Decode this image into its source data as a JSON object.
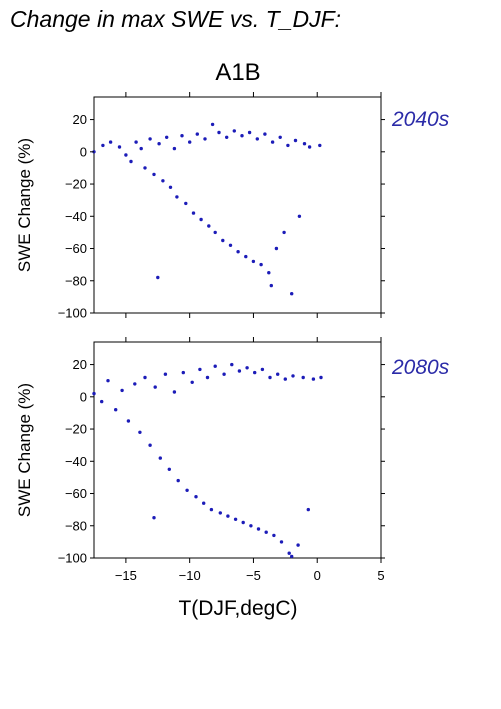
{
  "suptitle": "Change in max SWE vs. T_DJF:",
  "chart_title": "A1B",
  "xlabel": "T(DJF,degC)",
  "ylabel": "SWE Change (%)",
  "colors": {
    "points": "#1c1cb8",
    "panel_label": "#2b2ba8"
  },
  "chart_data": [
    {
      "type": "scatter",
      "panel_label": "2040s",
      "title": "A1B",
      "xlabel": "T(DJF,degC)",
      "ylabel": "SWE Change (%)",
      "xlim": [
        -17.5,
        5
      ],
      "ylim": [
        -100,
        34
      ],
      "xticks": [
        -15,
        -10,
        -5,
        0,
        5
      ],
      "yticks": [
        20,
        0,
        -20,
        -40,
        -60,
        -80,
        -100
      ],
      "xtick_labels_shown": false,
      "series": [
        {
          "points": [
            [
              -17.5,
              0
            ],
            [
              -16.8,
              4
            ],
            [
              -16.2,
              6
            ],
            [
              -15.5,
              3
            ],
            [
              -15.0,
              -2
            ],
            [
              -14.6,
              -6
            ],
            [
              -14.2,
              6
            ],
            [
              -13.8,
              2
            ],
            [
              -13.5,
              -10
            ],
            [
              -13.1,
              8
            ],
            [
              -12.8,
              -14
            ],
            [
              -12.4,
              5
            ],
            [
              -12.1,
              -18
            ],
            [
              -11.8,
              9
            ],
            [
              -11.5,
              -22
            ],
            [
              -11.2,
              2
            ],
            [
              -11.0,
              -28
            ],
            [
              -10.6,
              10
            ],
            [
              -10.3,
              -32
            ],
            [
              -10.0,
              6
            ],
            [
              -9.7,
              -38
            ],
            [
              -9.4,
              11
            ],
            [
              -9.1,
              -42
            ],
            [
              -8.8,
              8
            ],
            [
              -8.5,
              -46
            ],
            [
              -8.2,
              17
            ],
            [
              -8.0,
              -50
            ],
            [
              -7.7,
              12
            ],
            [
              -7.4,
              -55
            ],
            [
              -7.1,
              9
            ],
            [
              -6.8,
              -58
            ],
            [
              -6.5,
              13
            ],
            [
              -6.2,
              -62
            ],
            [
              -5.9,
              10
            ],
            [
              -5.6,
              -65
            ],
            [
              -5.3,
              12
            ],
            [
              -5.0,
              -68
            ],
            [
              -4.7,
              8
            ],
            [
              -4.4,
              -70
            ],
            [
              -4.1,
              11
            ],
            [
              -3.8,
              -75
            ],
            [
              -3.5,
              6
            ],
            [
              -3.2,
              -60
            ],
            [
              -2.9,
              9
            ],
            [
              -2.6,
              -50
            ],
            [
              -2.3,
              4
            ],
            [
              -2.0,
              -88
            ],
            [
              -1.7,
              7
            ],
            [
              -1.4,
              -40
            ],
            [
              -1.0,
              5
            ],
            [
              -0.6,
              3
            ],
            [
              0.2,
              4
            ],
            [
              -12.5,
              -78
            ],
            [
              -3.6,
              -83
            ]
          ]
        }
      ]
    },
    {
      "type": "scatter",
      "panel_label": "2080s",
      "xlabel": "T(DJF,degC)",
      "ylabel": "SWE Change (%)",
      "xlim": [
        -17.5,
        5
      ],
      "ylim": [
        -100,
        34
      ],
      "xticks": [
        -15,
        -10,
        -5,
        0,
        5
      ],
      "yticks": [
        20,
        0,
        -20,
        -40,
        -60,
        -80,
        -100
      ],
      "xtick_labels_shown": true,
      "series": [
        {
          "points": [
            [
              -17.5,
              2
            ],
            [
              -16.9,
              -3
            ],
            [
              -16.4,
              10
            ],
            [
              -15.8,
              -8
            ],
            [
              -15.3,
              4
            ],
            [
              -14.8,
              -15
            ],
            [
              -14.3,
              8
            ],
            [
              -13.9,
              -22
            ],
            [
              -13.5,
              12
            ],
            [
              -13.1,
              -30
            ],
            [
              -12.7,
              6
            ],
            [
              -12.3,
              -38
            ],
            [
              -11.9,
              14
            ],
            [
              -11.6,
              -45
            ],
            [
              -11.2,
              3
            ],
            [
              -10.9,
              -52
            ],
            [
              -10.5,
              15
            ],
            [
              -10.2,
              -58
            ],
            [
              -9.8,
              9
            ],
            [
              -9.5,
              -62
            ],
            [
              -9.2,
              17
            ],
            [
              -8.9,
              -66
            ],
            [
              -8.6,
              12
            ],
            [
              -8.3,
              -70
            ],
            [
              -8.0,
              19
            ],
            [
              -7.6,
              -72
            ],
            [
              -7.3,
              14
            ],
            [
              -7.0,
              -74
            ],
            [
              -6.7,
              20
            ],
            [
              -6.4,
              -76
            ],
            [
              -6.1,
              16
            ],
            [
              -5.8,
              -78
            ],
            [
              -5.5,
              18
            ],
            [
              -5.2,
              -80
            ],
            [
              -4.9,
              15
            ],
            [
              -4.6,
              -82
            ],
            [
              -4.3,
              17
            ],
            [
              -4.0,
              -84
            ],
            [
              -3.7,
              12
            ],
            [
              -3.4,
              -86
            ],
            [
              -3.1,
              14
            ],
            [
              -2.8,
              -90
            ],
            [
              -2.5,
              11
            ],
            [
              -2.2,
              -97
            ],
            [
              -1.9,
              13
            ],
            [
              -1.5,
              -92
            ],
            [
              -1.1,
              12
            ],
            [
              -0.7,
              -70
            ],
            [
              -0.3,
              11
            ],
            [
              0.3,
              12
            ],
            [
              -12.8,
              -75
            ],
            [
              -2.0,
              -99
            ]
          ]
        }
      ]
    }
  ]
}
